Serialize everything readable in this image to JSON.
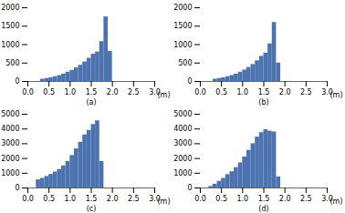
{
  "chart_data": [
    {
      "type": "histogram",
      "xlabel": "(a)",
      "annotation": "(m)",
      "color": "#4c72b0",
      "bins": [
        0,
        0.1,
        0.2,
        0.3,
        0.4,
        0.5,
        0.6,
        0.7,
        0.8,
        0.9,
        1.0,
        1.1,
        1.2,
        1.3,
        1.4,
        1.5,
        1.6,
        1.7,
        1.8,
        1.9,
        2.0,
        2.1,
        2.2,
        2.3,
        2.4,
        2.5,
        2.6,
        2.7,
        2.8,
        2.9,
        3.0
      ],
      "values": [
        0,
        0,
        0,
        60,
        80,
        100,
        130,
        160,
        200,
        250,
        300,
        370,
        440,
        530,
        630,
        740,
        800,
        1080,
        1750,
        820,
        0,
        0,
        0,
        0,
        0,
        0,
        0,
        0,
        0,
        0
      ],
      "xlim": [
        0,
        3
      ],
      "xticks": [
        {
          "value": 0,
          "label": "0.0"
        },
        0.5,
        {
          "value": 1,
          "label": "1.0"
        },
        1.5,
        {
          "value": 2,
          "label": "2.0"
        },
        2.5,
        {
          "value": 3,
          "label": "3.0"
        }
      ],
      "ylim": [
        0,
        2000
      ],
      "yticks": [
        0,
        500,
        1000,
        1500,
        2000
      ]
    },
    {
      "type": "histogram",
      "xlabel": "(b)",
      "annotation": "(m)",
      "color": "#4c72b0",
      "bins": [
        0,
        0.1,
        0.2,
        0.3,
        0.4,
        0.5,
        0.6,
        0.7,
        0.8,
        0.9,
        1.0,
        1.1,
        1.2,
        1.3,
        1.4,
        1.5,
        1.6,
        1.7,
        1.8,
        1.9,
        2.0,
        2.1,
        2.2,
        2.3,
        2.4,
        2.5,
        2.6,
        2.7,
        2.8,
        2.9,
        3.0
      ],
      "values": [
        0,
        0,
        0,
        60,
        80,
        100,
        130,
        160,
        200,
        250,
        310,
        380,
        460,
        560,
        680,
        770,
        1020,
        1600,
        500,
        0,
        0,
        0,
        0,
        0,
        0,
        0,
        0,
        0,
        0,
        0
      ],
      "xlim": [
        0,
        3
      ],
      "xticks": [
        {
          "value": 0,
          "label": "0.0"
        },
        0.5,
        {
          "value": 1,
          "label": "1.0"
        },
        1.5,
        {
          "value": 2,
          "label": "2.0"
        },
        2.5,
        {
          "value": 3,
          "label": "3.0"
        }
      ],
      "ylim": [
        0,
        2000
      ],
      "yticks": [
        0,
        500,
        1000,
        1500,
        2000
      ]
    },
    {
      "type": "histogram",
      "xlabel": "(c)",
      "annotation": "(m)",
      "color": "#4c72b0",
      "bins": [
        0,
        0.1,
        0.2,
        0.3,
        0.4,
        0.5,
        0.6,
        0.7,
        0.8,
        0.9,
        1.0,
        1.1,
        1.2,
        1.3,
        1.4,
        1.5,
        1.6,
        1.7,
        1.8,
        1.9,
        2.0,
        2.1,
        2.2,
        2.3,
        2.4,
        2.5,
        2.6,
        2.7,
        2.8,
        2.9,
        3.0
      ],
      "values": [
        0,
        0,
        550,
        650,
        780,
        920,
        1080,
        1250,
        1500,
        1800,
        2200,
        2650,
        3100,
        3600,
        3900,
        4300,
        4550,
        1800,
        0,
        0,
        0,
        0,
        0,
        0,
        0,
        0,
        0,
        0,
        0,
        0
      ],
      "xlim": [
        0,
        3
      ],
      "xticks": [
        {
          "value": 0,
          "label": "0.0"
        },
        0.5,
        {
          "value": 1,
          "label": "1.0"
        },
        1.5,
        {
          "value": 2,
          "label": "2.0"
        },
        2.5,
        {
          "value": 3,
          "label": "3.0"
        }
      ],
      "ylim": [
        0,
        5000
      ],
      "yticks": [
        0,
        1000,
        2000,
        3000,
        4000,
        5000
      ]
    },
    {
      "type": "histogram",
      "xlabel": "(d)",
      "annotation": "(m)",
      "color": "#4c72b0",
      "bins": [
        0,
        0.1,
        0.2,
        0.3,
        0.4,
        0.5,
        0.6,
        0.7,
        0.8,
        0.9,
        1.0,
        1.1,
        1.2,
        1.3,
        1.4,
        1.5,
        1.6,
        1.7,
        1.8,
        1.9,
        2.0,
        2.1,
        2.2,
        2.3,
        2.4,
        2.5,
        2.6,
        2.7,
        2.8,
        2.9,
        3.0
      ],
      "values": [
        0,
        0,
        100,
        250,
        450,
        650,
        900,
        1100,
        1380,
        1700,
        2100,
        2550,
        3000,
        3450,
        3750,
        3950,
        3850,
        3800,
        750,
        0,
        0,
        0,
        0,
        0,
        0,
        0,
        0,
        0,
        0,
        0
      ],
      "xlim": [
        0,
        3
      ],
      "xticks": [
        {
          "value": 0,
          "label": "0.0"
        },
        0.5,
        {
          "value": 1,
          "label": "1.0"
        },
        1.5,
        {
          "value": 2,
          "label": "2.0"
        },
        2.5,
        {
          "value": 3,
          "label": "3.0"
        }
      ],
      "ylim": [
        0,
        5000
      ],
      "yticks": [
        0,
        1000,
        2000,
        3000,
        4000,
        5000
      ]
    }
  ]
}
